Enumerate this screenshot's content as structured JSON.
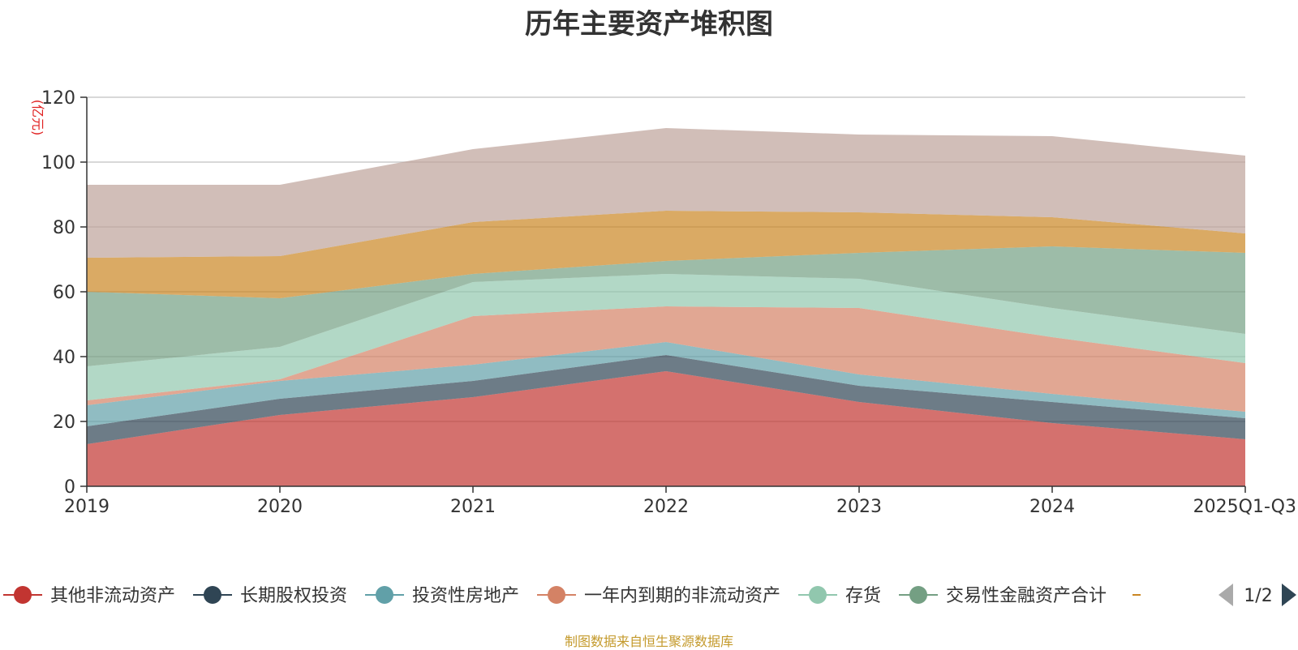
{
  "chart_data": {
    "type": "area",
    "stacked": true,
    "title": "历年主要资产堆积图",
    "ylabel": "(亿元)",
    "xlabel": "",
    "ylim": [
      0,
      120
    ],
    "yticks": [
      0,
      20,
      40,
      60,
      80,
      100,
      120
    ],
    "grid": true,
    "categories": [
      "2019",
      "2020",
      "2021",
      "2022",
      "2023",
      "2024",
      "2025Q1-Q3"
    ],
    "series": [
      {
        "name": "其他非流动资产",
        "color": "#c23531",
        "values": [
          13,
          22,
          27.5,
          35.5,
          26,
          19.5,
          14.5
        ]
      },
      {
        "name": "长期股权投资",
        "color": "#2f4554",
        "values": [
          5.5,
          5,
          5,
          5,
          5,
          6.5,
          6.5
        ]
      },
      {
        "name": "投资性房地产",
        "color": "#61a0a8",
        "values": [
          6.5,
          5.5,
          5,
          4,
          3.5,
          2.5,
          2
        ]
      },
      {
        "name": "一年内到期的非流动资产",
        "color": "#d48265",
        "values": [
          1.5,
          0.5,
          15,
          11,
          20.5,
          17.5,
          15
        ]
      },
      {
        "name": "存货",
        "color": "#91c7ae",
        "values": [
          10.5,
          10,
          10.5,
          10,
          9,
          9,
          9
        ]
      },
      {
        "name": "交易性金融资产合计",
        "color": "#749f83",
        "values": [
          23,
          15,
          2.5,
          4,
          8,
          19,
          25
        ]
      },
      {
        "name": "",
        "color": "#ca8622",
        "values": [
          10.5,
          13,
          16,
          15.5,
          12.5,
          9,
          6
        ]
      },
      {
        "name": "",
        "color": "#bda29a",
        "values": [
          22.5,
          22,
          22.5,
          25.5,
          24,
          25,
          24
        ]
      }
    ]
  },
  "legend": {
    "page_indicator": "1/2",
    "arrow_color_inactive": "#aaaaaa",
    "arrow_color_active": "#2f4554"
  },
  "footer": {
    "text": "制图数据来自恒生聚源数据库",
    "color": "#c49a2c"
  },
  "colors": {
    "axis": "#333333",
    "grid": "#cccccc",
    "ylabel": "#e02020",
    "text": "#333333"
  }
}
